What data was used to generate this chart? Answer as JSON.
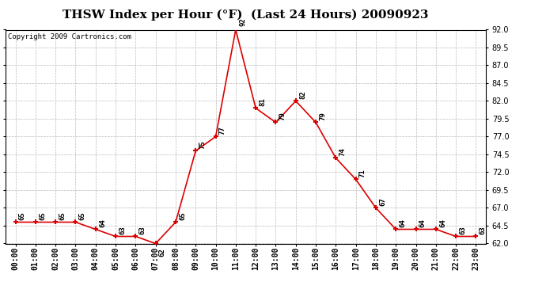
{
  "title": "THSW Index per Hour (°F)  (Last 24 Hours) 20090923",
  "copyright_text": "Copyright 2009 Cartronics.com",
  "hours": [
    0,
    1,
    2,
    3,
    4,
    5,
    6,
    7,
    8,
    9,
    10,
    11,
    12,
    13,
    14,
    15,
    16,
    17,
    18,
    19,
    20,
    21,
    22,
    23
  ],
  "hour_labels": [
    "00:00",
    "01:00",
    "02:00",
    "03:00",
    "04:00",
    "05:00",
    "06:00",
    "07:00",
    "08:00",
    "09:00",
    "10:00",
    "11:00",
    "12:00",
    "13:00",
    "14:00",
    "15:00",
    "16:00",
    "17:00",
    "18:00",
    "19:00",
    "20:00",
    "21:00",
    "22:00",
    "23:00"
  ],
  "values": [
    65,
    65,
    65,
    65,
    64,
    63,
    63,
    62,
    65,
    75,
    77,
    92,
    81,
    79,
    82,
    79,
    74,
    71,
    67,
    64,
    64,
    64,
    63,
    63
  ],
  "line_color": "#dd0000",
  "marker_color": "#dd0000",
  "bg_color": "#ffffff",
  "plot_bg_color": "#ffffff",
  "grid_color": "#bbbbbb",
  "ylim_min": 62.0,
  "ylim_max": 92.0,
  "yticks": [
    62.0,
    64.5,
    67.0,
    69.5,
    72.0,
    74.5,
    77.0,
    79.5,
    82.0,
    84.5,
    87.0,
    89.5,
    92.0
  ],
  "title_fontsize": 11,
  "annotation_fontsize": 6.5,
  "copyright_fontsize": 6.5,
  "tick_fontsize": 7
}
